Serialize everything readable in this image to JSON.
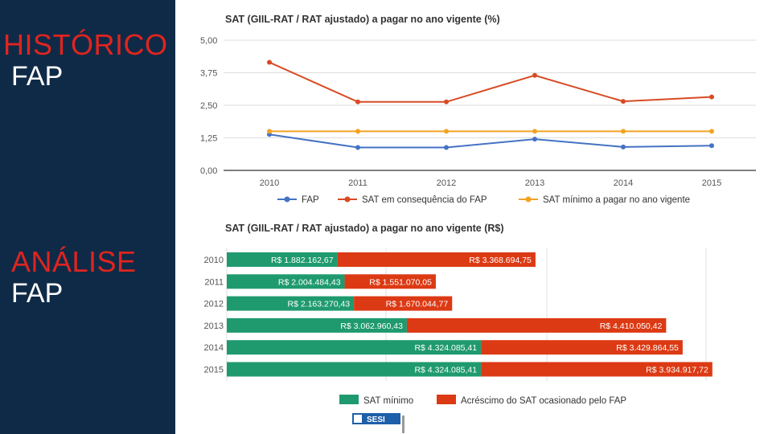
{
  "sidebar": {
    "section1": {
      "line1": "HISTÓRICO",
      "line2": "FAP"
    },
    "section2": {
      "line1": "ANÁLISE",
      "line2": "FAP"
    }
  },
  "colors": {
    "sidebar_bg": "#0f2a47",
    "accent_red": "#e0241f",
    "fap_blue": "#4472c4",
    "sat_red": "#d84a24",
    "sat_min_orange": "#f2a323",
    "bar_green": "#1f9a6f",
    "bar_red": "#dc3a14"
  },
  "chart_data": [
    {
      "type": "line",
      "title": "SAT (GIIL-RAT / RAT ajustado) a pagar no ano vigente (%)",
      "categories": [
        "2010",
        "2011",
        "2012",
        "2013",
        "2014",
        "2015"
      ],
      "ylim": [
        0,
        5
      ],
      "yticks": [
        "0,00",
        "1,25",
        "2,50",
        "3,75",
        "5,00"
      ],
      "grid": true,
      "legend_position": "bottom",
      "series": [
        {
          "name": "FAP",
          "color": "#4472c4",
          "values": [
            1.38,
            0.88,
            0.88,
            1.2,
            0.9,
            0.95
          ]
        },
        {
          "name": "SAT em consequência do FAP",
          "color": "#d84a24",
          "values": [
            4.15,
            2.63,
            2.63,
            3.65,
            2.65,
            2.82
          ]
        },
        {
          "name": "SAT mínimo a pagar no ano vigente",
          "color": "#f2a323",
          "values": [
            1.5,
            1.5,
            1.5,
            1.5,
            1.5,
            1.5
          ]
        }
      ]
    },
    {
      "type": "bar",
      "orientation": "horizontal",
      "stacked": true,
      "title": "SAT (GIIL-RAT / RAT ajustado) a pagar no ano vigente (R$)",
      "categories": [
        "2010",
        "2011",
        "2012",
        "2013",
        "2014",
        "2015"
      ],
      "xlim": [
        0,
        9000000
      ],
      "grid": true,
      "legend_position": "bottom",
      "series": [
        {
          "name": "SAT mínimo",
          "color": "#1f9a6f",
          "values": [
            1882162.67,
            2004484.43,
            2163270.43,
            3062960.43,
            4324085.41,
            4324085.41
          ],
          "labels": [
            "R$ 1.882.162,67",
            "R$ 2.004.484,43",
            "R$ 2.163.270,43",
            "R$ 3.062.960,43",
            "R$ 4.324.085,41",
            "R$ 4.324.085,41"
          ]
        },
        {
          "name": "Acréscimo do SAT ocasionado pelo FAP",
          "color": "#dc3a14",
          "values": [
            3368694.75,
            1551070.05,
            1670044.77,
            4410050.42,
            3429864.55,
            3934917.72
          ],
          "labels": [
            "R$ 3.368.694,75",
            "R$ 1.551.070,05",
            "R$ 1.670.044,77",
            "R$ 4.410.050,42",
            "R$ 3.429.864,55",
            "R$ 3.934.917,72"
          ]
        }
      ]
    }
  ],
  "footer_logo": {
    "text": "SESI"
  }
}
